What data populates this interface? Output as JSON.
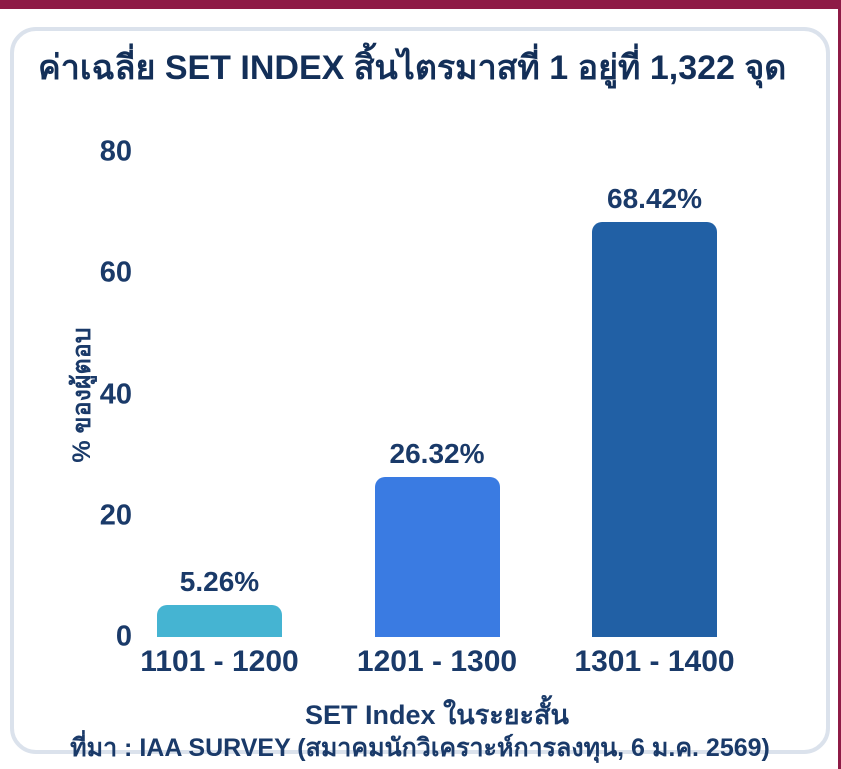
{
  "frame": {
    "accent_color": "#8e1b46"
  },
  "card": {
    "title": "ค่าเฉลี่ย SET INDEX สิ้นไตรมาสที่ 1 อยู่ที่ 1,322 จุด",
    "title_color": "#132f58",
    "text_color": "#1a3a69",
    "border_color": "#dbe2ec",
    "background": "#ffffff"
  },
  "chart_data": {
    "type": "bar",
    "title": "ค่าเฉลี่ย SET INDEX สิ้นไตรมาสที่ 1 อยู่ที่ 1,322 จุด",
    "categories": [
      "1101 - 1200",
      "1201 - 1300",
      "1301 - 1400"
    ],
    "values": [
      5.26,
      26.32,
      68.42
    ],
    "value_labels": [
      "5.26%",
      "26.32%",
      "68.42%"
    ],
    "bar_colors": [
      "#45b4d2",
      "#3a7be2",
      "#2160a5"
    ],
    "xlabel": "SET Index ในระยะสั้น",
    "ylabel": "% ของผู้ตอบ",
    "ylim": [
      0,
      80
    ],
    "yticks": [
      0,
      20,
      40,
      60,
      80
    ],
    "grid": false,
    "legend": false,
    "source": "ที่มา : IAA SURVEY (สมาคมนักวิเคราะห์การลงทุน, 6 ม.ค. 2569)"
  }
}
